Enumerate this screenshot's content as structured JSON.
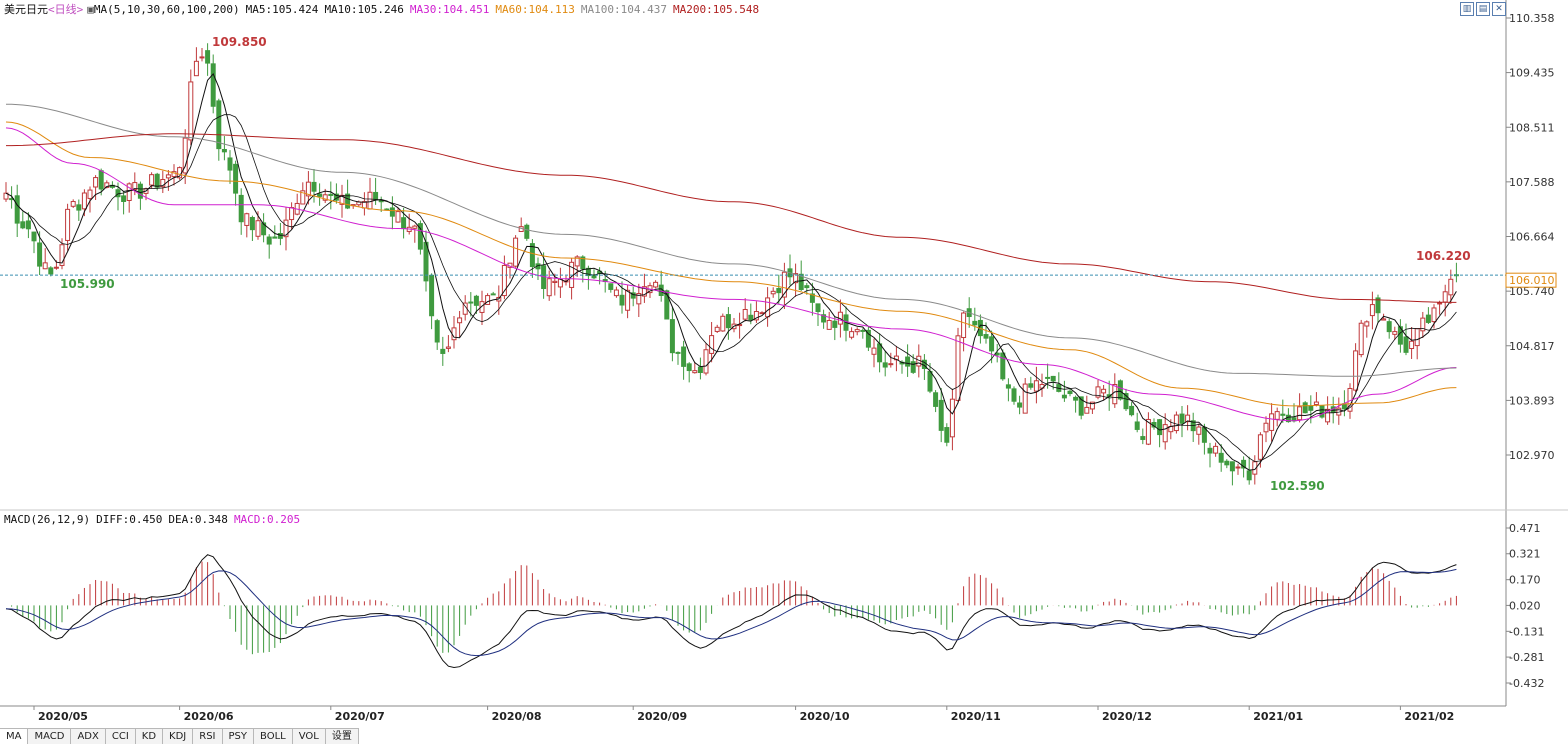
{
  "colors": {
    "up": "#c0393b",
    "down": "#3f9a3f",
    "ma5": "#111111",
    "ma10": "#111111",
    "ma30": "#d020d0",
    "ma60": "#e08a10",
    "ma100": "#8a8a8a",
    "ma200": "#b02020",
    "diff": "#111111",
    "dea": "#203080",
    "grid": "#c8c8c8"
  },
  "legend_main": {
    "symbol": "美元日元",
    "period": "<日线>",
    "ma_param": "MA(5,10,30,60,100,200)",
    "ma5": "MA5:105.424",
    "ma10": "MA10:105.246",
    "ma30": "MA30:104.451",
    "ma60": "MA60:104.113",
    "ma100": "MA100:104.437",
    "ma200": "MA200:105.548"
  },
  "legend_macd": {
    "param": "MACD(26,12,9)",
    "diff": "DIFF:0.450",
    "dea": "DEA:0.348",
    "macd": "MACD:0.205"
  },
  "price_axis_labels": [
    "110.358",
    "109.435",
    "108.511",
    "107.588",
    "106.664",
    "105.740",
    "104.817",
    "103.893",
    "102.970"
  ],
  "macd_axis_labels": [
    "0.471",
    "0.321",
    "0.170",
    "0.020",
    "-0.131",
    "-0.281",
    "-0.432"
  ],
  "current_price": "106.010",
  "annotations": {
    "high": "109.850",
    "low": "105.990",
    "low2": "102.590",
    "recent_high": "106.220"
  },
  "tabs": [
    "MA",
    "MACD",
    "ADX",
    "CCI",
    "KD",
    "KDJ",
    "RSI",
    "PSY",
    "BOLL",
    "VOL",
    "设置"
  ],
  "chart_data": {
    "type": "candlestick",
    "title": "美元日元",
    "period": "日线",
    "x_labels": [
      "2020/05",
      "2020/06",
      "2020/07",
      "2020/08",
      "2020/09",
      "2020/10",
      "2020/11",
      "2020/12",
      "2021/01",
      "2021/02"
    ],
    "price_range": [
      102.35,
      110.5
    ],
    "macd_range": [
      -0.56,
      0.5
    ],
    "current_price": 106.01,
    "anchors": [
      [
        0,
        107.4
      ],
      [
        3,
        106.9
      ],
      [
        8,
        106.0
      ],
      [
        12,
        107.2
      ],
      [
        16,
        107.6
      ],
      [
        22,
        107.4
      ],
      [
        30,
        107.7
      ],
      [
        35,
        109.85
      ],
      [
        39,
        108.0
      ],
      [
        43,
        106.9
      ],
      [
        48,
        106.6
      ],
      [
        54,
        107.6
      ],
      [
        60,
        107.2
      ],
      [
        66,
        107.3
      ],
      [
        72,
        106.9
      ],
      [
        78,
        104.6
      ],
      [
        82,
        105.6
      ],
      [
        87,
        105.6
      ],
      [
        92,
        106.8
      ],
      [
        96,
        105.8
      ],
      [
        103,
        106.2
      ],
      [
        110,
        105.6
      ],
      [
        115,
        106.0
      ],
      [
        120,
        104.7
      ],
      [
        123,
        104.4
      ],
      [
        127,
        105.2
      ],
      [
        133,
        105.4
      ],
      [
        140,
        106.0
      ],
      [
        146,
        105.3
      ],
      [
        152,
        105.2
      ],
      [
        157,
        104.5
      ],
      [
        163,
        104.5
      ],
      [
        168,
        103.2
      ],
      [
        171,
        105.4
      ],
      [
        175,
        104.8
      ],
      [
        180,
        103.9
      ],
      [
        185,
        104.2
      ],
      [
        192,
        103.8
      ],
      [
        198,
        104.1
      ],
      [
        203,
        103.4
      ],
      [
        210,
        103.6
      ],
      [
        216,
        103.0
      ],
      [
        221,
        102.59
      ],
      [
        226,
        103.7
      ],
      [
        232,
        103.7
      ],
      [
        238,
        103.8
      ],
      [
        244,
        105.5
      ],
      [
        250,
        104.8
      ],
      [
        255,
        105.3
      ],
      [
        259,
        106.22
      ]
    ],
    "ma_anchors": {
      "ma30": [
        [
          0,
          108.5
        ],
        [
          12,
          107.9
        ],
        [
          30,
          107.2
        ],
        [
          45,
          107.2
        ],
        [
          70,
          106.8
        ],
        [
          100,
          105.95
        ],
        [
          130,
          105.6
        ],
        [
          160,
          105.1
        ],
        [
          185,
          104.5
        ],
        [
          205,
          104.0
        ],
        [
          230,
          103.55
        ],
        [
          245,
          104.0
        ],
        [
          259,
          104.45
        ]
      ],
      "ma60": [
        [
          0,
          108.6
        ],
        [
          15,
          108.0
        ],
        [
          40,
          107.6
        ],
        [
          70,
          107.1
        ],
        [
          100,
          106.3
        ],
        [
          130,
          105.9
        ],
        [
          160,
          105.4
        ],
        [
          190,
          104.75
        ],
        [
          210,
          104.1
        ],
        [
          230,
          103.8
        ],
        [
          245,
          103.85
        ],
        [
          259,
          104.11
        ]
      ],
      "ma100": [
        [
          0,
          108.9
        ],
        [
          30,
          108.35
        ],
        [
          60,
          107.75
        ],
        [
          100,
          106.7
        ],
        [
          130,
          106.2
        ],
        [
          160,
          105.6
        ],
        [
          190,
          104.95
        ],
        [
          220,
          104.35
        ],
        [
          240,
          104.3
        ],
        [
          259,
          104.44
        ]
      ],
      "ma200": [
        [
          0,
          108.2
        ],
        [
          30,
          108.4
        ],
        [
          60,
          108.3
        ],
        [
          100,
          107.7
        ],
        [
          130,
          107.25
        ],
        [
          160,
          106.65
        ],
        [
          190,
          106.2
        ],
        [
          215,
          105.9
        ],
        [
          240,
          105.6
        ],
        [
          259,
          105.55
        ]
      ]
    },
    "legend": [
      "MA5:105.424",
      "MA10:105.246",
      "MA30:104.451",
      "MA60:104.113",
      "MA100:104.437",
      "MA200:105.548"
    ],
    "macd": {
      "diff": 0.45,
      "dea": 0.348,
      "hist": 0.205
    }
  }
}
